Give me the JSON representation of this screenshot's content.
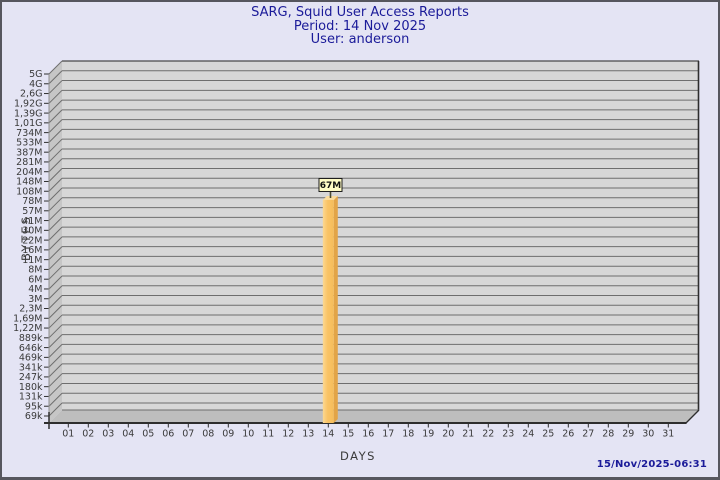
{
  "frame": {
    "background": "#E4E4F4",
    "border_color": "#56565E"
  },
  "header": {
    "title_line": "SARG, Squid User Access Reports",
    "period_line": "Period: 14 Nov 2025",
    "user_line": "User: anderson",
    "text_color": "#1B1B99"
  },
  "footer": {
    "timestamp": "15/Nov/2025-06:31"
  },
  "chart_data": {
    "type": "bar",
    "title": "SARG, Squid User Access Reports",
    "period": "14 Nov 2025",
    "user": "anderson",
    "xlabel": "DAYS",
    "ylabel": "BYTES",
    "y_scale": "logarithmic",
    "ylim_labels": [
      "69k",
      "5G"
    ],
    "legend": "none",
    "grid": "horizontal",
    "x_tick_labels": [
      "01",
      "02",
      "03",
      "04",
      "05",
      "06",
      "07",
      "08",
      "09",
      "10",
      "11",
      "12",
      "13",
      "14",
      "15",
      "16",
      "17",
      "18",
      "19",
      "20",
      "21",
      "22",
      "23",
      "24",
      "25",
      "26",
      "27",
      "28",
      "29",
      "30",
      "31"
    ],
    "y_tick_labels": [
      "5G",
      "4G",
      "2,6G",
      "1,92G",
      "1,39G",
      "1,01G",
      "734M",
      "533M",
      "387M",
      "281M",
      "204M",
      "148M",
      "108M",
      "78M",
      "57M",
      "41M",
      "30M",
      "22M",
      "16M",
      "11M",
      "8M",
      "6M",
      "4M",
      "3M",
      "2,3M",
      "1,69M",
      "1,22M",
      "889k",
      "646k",
      "469k",
      "341k",
      "247k",
      "180k",
      "131k",
      "95k",
      "69k"
    ],
    "categories": [
      "01",
      "02",
      "03",
      "04",
      "05",
      "06",
      "07",
      "08",
      "09",
      "10",
      "11",
      "12",
      "13",
      "14",
      "15",
      "16",
      "17",
      "18",
      "19",
      "20",
      "21",
      "22",
      "23",
      "24",
      "25",
      "26",
      "27",
      "28",
      "29",
      "30",
      "31"
    ],
    "values": [
      0,
      0,
      0,
      0,
      0,
      0,
      0,
      0,
      0,
      0,
      0,
      0,
      0,
      67000000,
      0,
      0,
      0,
      0,
      0,
      0,
      0,
      0,
      0,
      0,
      0,
      0,
      0,
      0,
      0,
      0,
      0
    ],
    "bars": [
      {
        "day": 14,
        "label": "67M",
        "value_bytes": 67000000
      }
    ],
    "colors": {
      "panel": "#D7D7D7",
      "wall": "#C6C6C6",
      "floor": "#BEBEBE",
      "grid": "#6E6E6E",
      "axis": "#2E2E2E",
      "tick_text": "#3A3A3A",
      "bar_front": "#F9C365",
      "bar_front_highlight": "#FCD891",
      "bar_side": "#E2A447",
      "bar_top": "#FBDD9D",
      "bar_label_bg": "#FFFCC6",
      "bar_label_border": "#1C1C1C"
    }
  }
}
